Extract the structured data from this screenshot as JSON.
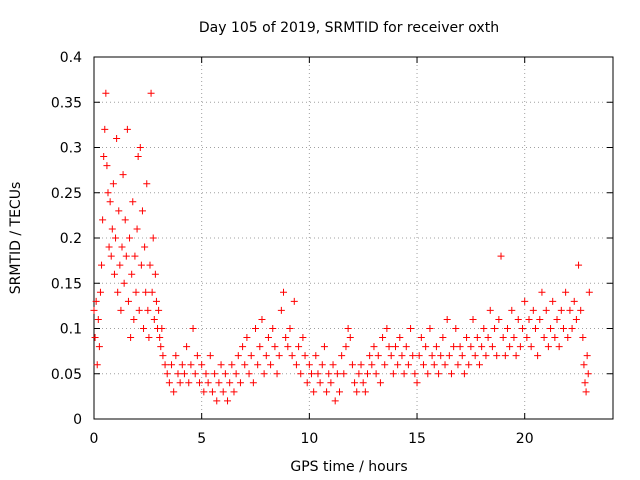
{
  "chart_data": {
    "type": "scatter",
    "title": "Day 105 of 2019, SRMTID for receiver oxth",
    "xlabel": "GPS time / hours",
    "ylabel": "SRMTID / TECUs",
    "xlim": [
      0,
      24.1
    ],
    "ylim": [
      0,
      0.4
    ],
    "xticks": [
      0,
      5,
      10,
      15,
      20
    ],
    "xtick_labels": [
      "0",
      "5",
      "10",
      "15",
      "20"
    ],
    "yticks": [
      0,
      0.05,
      0.1,
      0.15,
      0.2,
      0.25,
      0.3,
      0.35,
      0.4
    ],
    "ytick_labels": [
      "0",
      "0.05",
      "0.1",
      "0.15",
      "0.2",
      "0.25",
      "0.3",
      "0.35",
      "0.4"
    ],
    "grid": true,
    "marker": "+",
    "color": "#ff0000",
    "series": [
      {
        "name": "SRMTID",
        "points": [
          [
            0.0,
            0.12
          ],
          [
            0.05,
            0.09
          ],
          [
            0.1,
            0.13
          ],
          [
            0.15,
            0.06
          ],
          [
            0.2,
            0.11
          ],
          [
            0.25,
            0.08
          ],
          [
            0.3,
            0.14
          ],
          [
            0.35,
            0.17
          ],
          [
            0.4,
            0.22
          ],
          [
            0.45,
            0.29
          ],
          [
            0.5,
            0.32
          ],
          [
            0.55,
            0.36
          ],
          [
            0.6,
            0.28
          ],
          [
            0.65,
            0.25
          ],
          [
            0.7,
            0.19
          ],
          [
            0.75,
            0.24
          ],
          [
            0.8,
            0.18
          ],
          [
            0.85,
            0.21
          ],
          [
            0.9,
            0.26
          ],
          [
            0.95,
            0.16
          ],
          [
            1.0,
            0.2
          ],
          [
            1.05,
            0.31
          ],
          [
            1.1,
            0.14
          ],
          [
            1.15,
            0.23
          ],
          [
            1.2,
            0.17
          ],
          [
            1.25,
            0.12
          ],
          [
            1.3,
            0.19
          ],
          [
            1.35,
            0.27
          ],
          [
            1.4,
            0.15
          ],
          [
            1.45,
            0.22
          ],
          [
            1.5,
            0.18
          ],
          [
            1.55,
            0.32
          ],
          [
            1.6,
            0.13
          ],
          [
            1.65,
            0.2
          ],
          [
            1.7,
            0.09
          ],
          [
            1.75,
            0.16
          ],
          [
            1.8,
            0.24
          ],
          [
            1.85,
            0.11
          ],
          [
            1.9,
            0.18
          ],
          [
            1.95,
            0.14
          ],
          [
            2.0,
            0.21
          ],
          [
            2.05,
            0.29
          ],
          [
            2.1,
            0.12
          ],
          [
            2.15,
            0.3
          ],
          [
            2.2,
            0.17
          ],
          [
            2.25,
            0.23
          ],
          [
            2.3,
            0.1
          ],
          [
            2.35,
            0.19
          ],
          [
            2.4,
            0.14
          ],
          [
            2.45,
            0.26
          ],
          [
            2.5,
            0.12
          ],
          [
            2.55,
            0.09
          ],
          [
            2.6,
            0.17
          ],
          [
            2.65,
            0.36
          ],
          [
            2.7,
            0.14
          ],
          [
            2.75,
            0.2
          ],
          [
            2.8,
            0.11
          ],
          [
            2.85,
            0.16
          ],
          [
            2.9,
            0.13
          ],
          [
            2.95,
            0.1
          ],
          [
            3.0,
            0.12
          ],
          [
            3.05,
            0.09
          ],
          [
            3.1,
            0.08
          ],
          [
            3.15,
            0.1
          ],
          [
            3.2,
            0.07
          ],
          [
            3.3,
            0.06
          ],
          [
            3.4,
            0.05
          ],
          [
            3.5,
            0.04
          ],
          [
            3.6,
            0.06
          ],
          [
            3.7,
            0.03
          ],
          [
            3.8,
            0.07
          ],
          [
            3.9,
            0.05
          ],
          [
            4.0,
            0.04
          ],
          [
            4.1,
            0.06
          ],
          [
            4.2,
            0.05
          ],
          [
            4.3,
            0.08
          ],
          [
            4.4,
            0.04
          ],
          [
            4.5,
            0.06
          ],
          [
            4.6,
            0.1
          ],
          [
            4.7,
            0.05
          ],
          [
            4.8,
            0.07
          ],
          [
            4.9,
            0.04
          ],
          [
            5.0,
            0.06
          ],
          [
            5.1,
            0.03
          ],
          [
            5.2,
            0.05
          ],
          [
            5.3,
            0.04
          ],
          [
            5.4,
            0.07
          ],
          [
            5.5,
            0.03
          ],
          [
            5.6,
            0.05
          ],
          [
            5.7,
            0.02
          ],
          [
            5.8,
            0.04
          ],
          [
            5.9,
            0.06
          ],
          [
            6.0,
            0.03
          ],
          [
            6.1,
            0.05
          ],
          [
            6.2,
            0.02
          ],
          [
            6.3,
            0.04
          ],
          [
            6.4,
            0.06
          ],
          [
            6.5,
            0.03
          ],
          [
            6.6,
            0.05
          ],
          [
            6.7,
            0.07
          ],
          [
            6.8,
            0.04
          ],
          [
            6.9,
            0.08
          ],
          [
            7.0,
            0.06
          ],
          [
            7.1,
            0.09
          ],
          [
            7.2,
            0.05
          ],
          [
            7.3,
            0.07
          ],
          [
            7.4,
            0.04
          ],
          [
            7.5,
            0.1
          ],
          [
            7.6,
            0.06
          ],
          [
            7.7,
            0.08
          ],
          [
            7.8,
            0.11
          ],
          [
            7.9,
            0.05
          ],
          [
            8.0,
            0.07
          ],
          [
            8.1,
            0.09
          ],
          [
            8.2,
            0.06
          ],
          [
            8.3,
            0.1
          ],
          [
            8.4,
            0.08
          ],
          [
            8.5,
            0.05
          ],
          [
            8.6,
            0.07
          ],
          [
            8.7,
            0.12
          ],
          [
            8.8,
            0.14
          ],
          [
            8.9,
            0.09
          ],
          [
            9.0,
            0.08
          ],
          [
            9.1,
            0.1
          ],
          [
            9.2,
            0.07
          ],
          [
            9.3,
            0.13
          ],
          [
            9.4,
            0.06
          ],
          [
            9.5,
            0.08
          ],
          [
            9.6,
            0.05
          ],
          [
            9.7,
            0.09
          ],
          [
            9.8,
            0.07
          ],
          [
            9.9,
            0.04
          ],
          [
            10.0,
            0.06
          ],
          [
            10.1,
            0.05
          ],
          [
            10.2,
            0.03
          ],
          [
            10.3,
            0.07
          ],
          [
            10.4,
            0.05
          ],
          [
            10.5,
            0.04
          ],
          [
            10.6,
            0.06
          ],
          [
            10.7,
            0.08
          ],
          [
            10.8,
            0.03
          ],
          [
            10.9,
            0.05
          ],
          [
            11.0,
            0.04
          ],
          [
            11.1,
            0.06
          ],
          [
            11.2,
            0.02
          ],
          [
            11.3,
            0.05
          ],
          [
            11.4,
            0.03
          ],
          [
            11.5,
            0.07
          ],
          [
            11.6,
            0.05
          ],
          [
            11.7,
            0.08
          ],
          [
            11.8,
            0.1
          ],
          [
            11.9,
            0.09
          ],
          [
            12.0,
            0.06
          ],
          [
            12.1,
            0.04
          ],
          [
            12.2,
            0.03
          ],
          [
            12.3,
            0.05
          ],
          [
            12.4,
            0.06
          ],
          [
            12.5,
            0.04
          ],
          [
            12.6,
            0.03
          ],
          [
            12.7,
            0.05
          ],
          [
            12.8,
            0.07
          ],
          [
            12.9,
            0.06
          ],
          [
            13.0,
            0.08
          ],
          [
            13.1,
            0.05
          ],
          [
            13.2,
            0.07
          ],
          [
            13.3,
            0.04
          ],
          [
            13.4,
            0.09
          ],
          [
            13.5,
            0.06
          ],
          [
            13.6,
            0.1
          ],
          [
            13.7,
            0.08
          ],
          [
            13.8,
            0.07
          ],
          [
            13.9,
            0.05
          ],
          [
            14.0,
            0.08
          ],
          [
            14.1,
            0.06
          ],
          [
            14.2,
            0.09
          ],
          [
            14.3,
            0.07
          ],
          [
            14.4,
            0.05
          ],
          [
            14.5,
            0.08
          ],
          [
            14.6,
            0.06
          ],
          [
            14.7,
            0.1
          ],
          [
            14.8,
            0.07
          ],
          [
            14.9,
            0.05
          ],
          [
            15.0,
            0.04
          ],
          [
            15.1,
            0.07
          ],
          [
            15.2,
            0.09
          ],
          [
            15.3,
            0.06
          ],
          [
            15.4,
            0.08
          ],
          [
            15.5,
            0.05
          ],
          [
            15.6,
            0.1
          ],
          [
            15.7,
            0.07
          ],
          [
            15.8,
            0.06
          ],
          [
            15.9,
            0.08
          ],
          [
            16.0,
            0.05
          ],
          [
            16.1,
            0.07
          ],
          [
            16.2,
            0.09
          ],
          [
            16.3,
            0.06
          ],
          [
            16.4,
            0.11
          ],
          [
            16.5,
            0.07
          ],
          [
            16.6,
            0.05
          ],
          [
            16.7,
            0.08
          ],
          [
            16.8,
            0.1
          ],
          [
            16.9,
            0.06
          ],
          [
            17.0,
            0.08
          ],
          [
            17.1,
            0.07
          ],
          [
            17.2,
            0.05
          ],
          [
            17.3,
            0.09
          ],
          [
            17.4,
            0.06
          ],
          [
            17.5,
            0.08
          ],
          [
            17.6,
            0.11
          ],
          [
            17.7,
            0.07
          ],
          [
            17.8,
            0.09
          ],
          [
            17.9,
            0.06
          ],
          [
            18.0,
            0.08
          ],
          [
            18.1,
            0.1
          ],
          [
            18.2,
            0.07
          ],
          [
            18.3,
            0.09
          ],
          [
            18.4,
            0.12
          ],
          [
            18.5,
            0.08
          ],
          [
            18.6,
            0.1
          ],
          [
            18.7,
            0.07
          ],
          [
            18.8,
            0.11
          ],
          [
            18.9,
            0.18
          ],
          [
            19.0,
            0.09
          ],
          [
            19.1,
            0.07
          ],
          [
            19.2,
            0.1
          ],
          [
            19.3,
            0.08
          ],
          [
            19.4,
            0.12
          ],
          [
            19.5,
            0.09
          ],
          [
            19.6,
            0.07
          ],
          [
            19.7,
            0.11
          ],
          [
            19.8,
            0.08
          ],
          [
            19.9,
            0.1
          ],
          [
            20.0,
            0.13
          ],
          [
            20.1,
            0.09
          ],
          [
            20.2,
            0.11
          ],
          [
            20.3,
            0.08
          ],
          [
            20.4,
            0.12
          ],
          [
            20.5,
            0.1
          ],
          [
            20.6,
            0.07
          ],
          [
            20.7,
            0.11
          ],
          [
            20.8,
            0.14
          ],
          [
            20.9,
            0.09
          ],
          [
            21.0,
            0.12
          ],
          [
            21.1,
            0.08
          ],
          [
            21.2,
            0.1
          ],
          [
            21.3,
            0.13
          ],
          [
            21.4,
            0.09
          ],
          [
            21.5,
            0.11
          ],
          [
            21.6,
            0.08
          ],
          [
            21.7,
            0.12
          ],
          [
            21.8,
            0.1
          ],
          [
            21.9,
            0.14
          ],
          [
            22.0,
            0.09
          ],
          [
            22.1,
            0.12
          ],
          [
            22.2,
            0.1
          ],
          [
            22.3,
            0.13
          ],
          [
            22.4,
            0.11
          ],
          [
            22.5,
            0.17
          ],
          [
            22.6,
            0.12
          ],
          [
            22.7,
            0.09
          ],
          [
            22.75,
            0.06
          ],
          [
            22.8,
            0.04
          ],
          [
            22.85,
            0.03
          ],
          [
            22.9,
            0.07
          ],
          [
            22.95,
            0.05
          ],
          [
            23.0,
            0.14
          ]
        ]
      }
    ]
  }
}
